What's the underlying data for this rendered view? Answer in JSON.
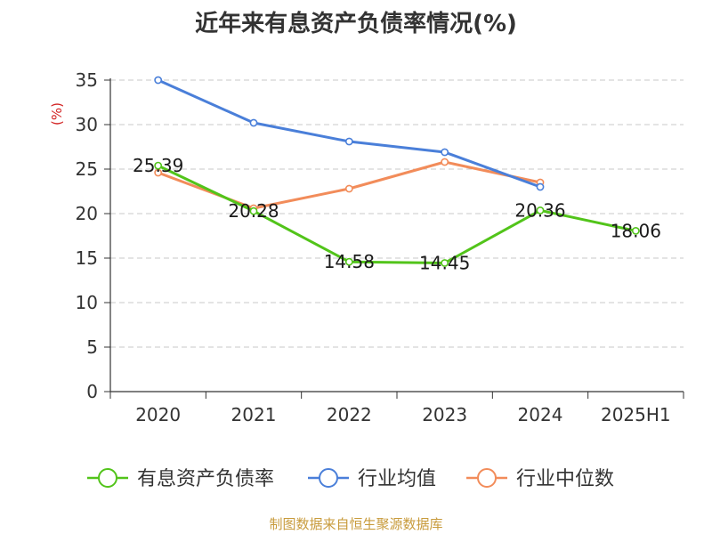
{
  "chart_data": {
    "type": "line",
    "title": "近年来有息资产负债率情况(%)",
    "ylabel": "(%)",
    "ylim": [
      0,
      35
    ],
    "yticks": [
      0,
      5,
      10,
      15,
      20,
      25,
      30,
      35
    ],
    "categories": [
      "2020",
      "2021",
      "2022",
      "2023",
      "2024",
      "2025H1"
    ],
    "grid": true,
    "legend_position": "bottom",
    "series": [
      {
        "name": "有息资产负债率",
        "color": "#52c41a",
        "values": [
          25.39,
          20.28,
          14.58,
          14.45,
          20.36,
          18.06
        ],
        "data_labels": [
          "25.39",
          "20.28",
          "14.58",
          "14.45",
          "20.36",
          "18.06"
        ]
      },
      {
        "name": "行业均值",
        "color": "#4a7fd9",
        "values": [
          35.0,
          30.2,
          28.1,
          26.9,
          23.0,
          null
        ]
      },
      {
        "name": "行业中位数",
        "color": "#f28c5a",
        "values": [
          24.6,
          20.6,
          22.8,
          25.8,
          23.5,
          null
        ]
      }
    ]
  },
  "source": "制图数据来自恒生聚源数据库"
}
